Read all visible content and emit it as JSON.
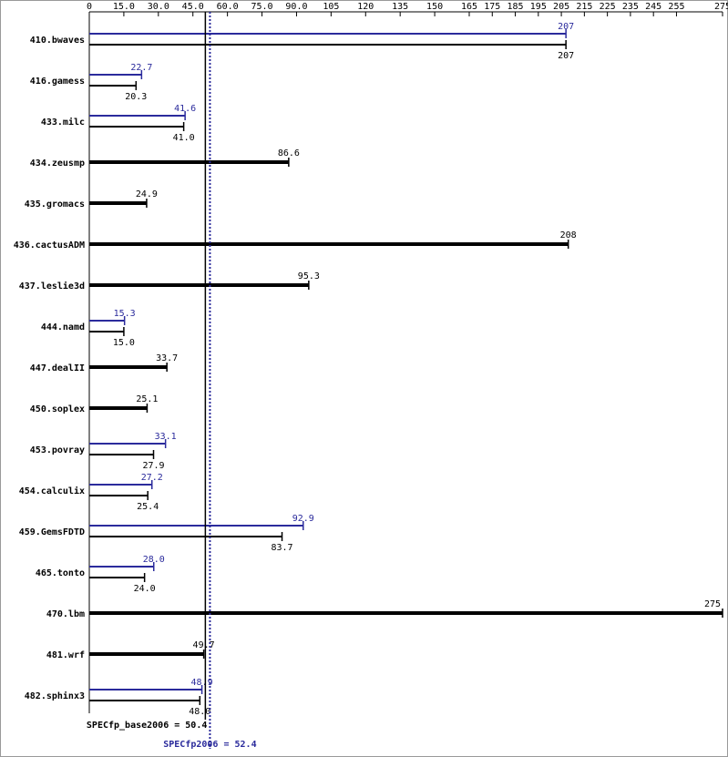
{
  "chart_data": {
    "type": "bar",
    "orientation": "horizontal",
    "categories": [
      "410.bwaves",
      "416.gamess",
      "433.milc",
      "434.zeusmp",
      "435.gromacs",
      "436.cactusADM",
      "437.leslie3d",
      "444.namd",
      "447.dealII",
      "450.soplex",
      "453.povray",
      "454.calculix",
      "459.GemsFDTD",
      "465.tonto",
      "470.lbm",
      "481.wrf",
      "482.sphinx3"
    ],
    "series": [
      {
        "name": "SPECfp2006",
        "color": "#2b2b9c",
        "values": [
          207,
          22.7,
          41.6,
          null,
          null,
          null,
          null,
          15.3,
          null,
          null,
          33.1,
          27.2,
          92.9,
          28.0,
          null,
          null,
          48.9
        ],
        "value_labels": [
          "207",
          "22.7",
          "41.6",
          null,
          null,
          null,
          null,
          "15.3",
          null,
          null,
          "33.1",
          "27.2",
          "92.9",
          "28.0",
          null,
          null,
          "48.9"
        ]
      },
      {
        "name": "SPECfp_base2006",
        "color": "#000000",
        "values": [
          207,
          20.3,
          41.0,
          86.6,
          24.9,
          208,
          95.3,
          15.0,
          33.7,
          25.1,
          27.9,
          25.4,
          83.7,
          24.0,
          275,
          49.7,
          48.0
        ],
        "value_labels": [
          "207",
          "20.3",
          "41.0",
          "86.6",
          "24.9",
          "208",
          "95.3",
          "15.0",
          "33.7",
          "25.1",
          "27.9",
          "25.4",
          "83.7",
          "24.0",
          "275",
          "49.7",
          "48.0"
        ]
      }
    ],
    "xlim": [
      0,
      275
    ],
    "xticks": [
      0,
      {
        "value": 15,
        "label": "15.0"
      },
      {
        "value": 30,
        "label": "30.0"
      },
      {
        "value": 45,
        "label": "45.0"
      },
      {
        "value": 60,
        "label": "60.0"
      },
      {
        "value": 75,
        "label": "75.0"
      },
      {
        "value": 90,
        "label": "90.0"
      },
      105,
      120,
      135,
      150,
      165,
      175,
      185,
      195,
      205,
      215,
      225,
      235,
      245,
      255,
      275
    ],
    "reference_lines": [
      {
        "text": "SPECfp_base2006 = 50.4",
        "value": 50.4,
        "color": "#000000",
        "style": "solid"
      },
      {
        "text": "SPECfp2006 = 52.4",
        "value": 52.4,
        "color": "#2b2b9c",
        "style": "dotted"
      }
    ]
  }
}
